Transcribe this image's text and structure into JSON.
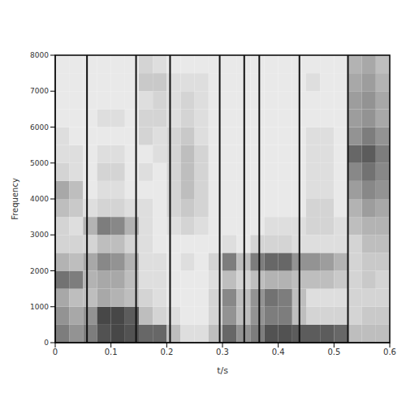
{
  "chart_data": {
    "type": "heatmap",
    "x_label": "t/s",
    "y_label": "Frequency",
    "xlim": [
      0,
      0.6
    ],
    "xticks": [
      0,
      0.1,
      0.2,
      0.3,
      0.4,
      0.5,
      0.6
    ],
    "ylim": [
      0,
      8000
    ],
    "yticks": [
      0,
      1000,
      2000,
      3000,
      4000,
      5000,
      6000,
      7000,
      8000
    ],
    "x": [
      0,
      0.025,
      0.05,
      0.075,
      0.1,
      0.125,
      0.15,
      0.175,
      0.2,
      0.225,
      0.25,
      0.275,
      0.3,
      0.325,
      0.35,
      0.375,
      0.4,
      0.425,
      0.45,
      0.475,
      0.5,
      0.525,
      0.55,
      0.575
    ],
    "y": [
      0,
      500,
      1000,
      1500,
      2000,
      2500,
      3000,
      3500,
      4000,
      4500,
      5000,
      5500,
      6000,
      6500,
      7000,
      7500
    ],
    "cells": [
      [
        0.6,
        0.5,
        0.6,
        0.8,
        0.85,
        0.8,
        0.7,
        0.7,
        0.3,
        0.15,
        0.15,
        0.3,
        0.7,
        0.5,
        0.6,
        0.8,
        0.8,
        0.75,
        0.75,
        0.75,
        0.7,
        0.3,
        0.3,
        0.3
      ],
      [
        0.5,
        0.4,
        0.5,
        0.85,
        0.85,
        0.75,
        0.3,
        0.2,
        0.15,
        0.1,
        0.1,
        0.2,
        0.5,
        0.3,
        0.5,
        0.6,
        0.6,
        0.3,
        0.2,
        0.2,
        0.2,
        0.2,
        0.25,
        0.25
      ],
      [
        0.4,
        0.3,
        0.3,
        0.4,
        0.35,
        0.3,
        0.2,
        0.15,
        0.1,
        0.1,
        0.1,
        0.2,
        0.55,
        0.3,
        0.5,
        0.65,
        0.6,
        0.3,
        0.15,
        0.15,
        0.15,
        0.2,
        0.2,
        0.2
      ],
      [
        0.65,
        0.6,
        0.35,
        0.4,
        0.4,
        0.3,
        0.15,
        0.15,
        0.1,
        0.1,
        0.1,
        0.15,
        0.3,
        0.2,
        0.3,
        0.35,
        0.35,
        0.3,
        0.3,
        0.3,
        0.25,
        0.2,
        0.25,
        0.2
      ],
      [
        0.35,
        0.3,
        0.4,
        0.55,
        0.5,
        0.35,
        0.15,
        0.15,
        0.1,
        0.15,
        0.1,
        0.2,
        0.6,
        0.3,
        0.6,
        0.7,
        0.7,
        0.5,
        0.5,
        0.45,
        0.35,
        0.2,
        0.25,
        0.25
      ],
      [
        0.2,
        0.2,
        0.2,
        0.3,
        0.3,
        0.2,
        0.15,
        0.1,
        0.1,
        0.1,
        0.1,
        0.1,
        0.15,
        0.1,
        0.2,
        0.2,
        0.2,
        0.15,
        0.15,
        0.15,
        0.15,
        0.2,
        0.3,
        0.3
      ],
      [
        0.2,
        0.15,
        0.35,
        0.6,
        0.55,
        0.35,
        0.15,
        0.1,
        0.15,
        0.2,
        0.15,
        0.1,
        0.1,
        0.1,
        0.1,
        0.15,
        0.15,
        0.15,
        0.2,
        0.2,
        0.15,
        0.3,
        0.35,
        0.35
      ],
      [
        0.3,
        0.25,
        0.15,
        0.2,
        0.2,
        0.15,
        0.15,
        0.1,
        0.2,
        0.25,
        0.2,
        0.1,
        0.1,
        0.1,
        0.1,
        0.1,
        0.1,
        0.1,
        0.2,
        0.2,
        0.1,
        0.35,
        0.45,
        0.4
      ],
      [
        0.4,
        0.3,
        0.1,
        0.15,
        0.15,
        0.1,
        0.1,
        0.1,
        0.2,
        0.3,
        0.2,
        0.1,
        0.1,
        0.1,
        0.1,
        0.1,
        0.1,
        0.1,
        0.15,
        0.15,
        0.1,
        0.45,
        0.55,
        0.5
      ],
      [
        0.2,
        0.15,
        0.1,
        0.2,
        0.2,
        0.1,
        0.15,
        0.1,
        0.2,
        0.3,
        0.2,
        0.1,
        0.1,
        0.1,
        0.1,
        0.1,
        0.1,
        0.1,
        0.15,
        0.15,
        0.1,
        0.55,
        0.65,
        0.55
      ],
      [
        0.15,
        0.15,
        0.1,
        0.15,
        0.15,
        0.1,
        0.1,
        0.15,
        0.2,
        0.3,
        0.2,
        0.1,
        0.1,
        0.1,
        0.1,
        0.1,
        0.1,
        0.1,
        0.15,
        0.15,
        0.1,
        0.7,
        0.75,
        0.6
      ],
      [
        0.15,
        0.1,
        0.1,
        0.1,
        0.1,
        0.1,
        0.2,
        0.15,
        0.2,
        0.25,
        0.15,
        0.1,
        0.1,
        0.1,
        0.1,
        0.1,
        0.1,
        0.1,
        0.15,
        0.15,
        0.1,
        0.5,
        0.6,
        0.5
      ],
      [
        0.1,
        0.1,
        0.1,
        0.15,
        0.15,
        0.1,
        0.2,
        0.2,
        0.15,
        0.2,
        0.15,
        0.1,
        0.1,
        0.1,
        0.1,
        0.1,
        0.1,
        0.1,
        0.1,
        0.1,
        0.1,
        0.45,
        0.5,
        0.4
      ],
      [
        0.1,
        0.1,
        0.1,
        0.1,
        0.1,
        0.1,
        0.15,
        0.2,
        0.15,
        0.2,
        0.15,
        0.1,
        0.1,
        0.1,
        0.1,
        0.1,
        0.1,
        0.1,
        0.1,
        0.1,
        0.1,
        0.45,
        0.5,
        0.4
      ],
      [
        0.1,
        0.1,
        0.1,
        0.1,
        0.1,
        0.1,
        0.25,
        0.25,
        0.15,
        0.15,
        0.15,
        0.1,
        0.1,
        0.1,
        0.1,
        0.1,
        0.1,
        0.1,
        0.15,
        0.1,
        0.1,
        0.4,
        0.45,
        0.35
      ],
      [
        0.1,
        0.1,
        0.1,
        0.1,
        0.1,
        0.1,
        0.2,
        0.15,
        0.1,
        0.1,
        0.1,
        0.1,
        0.1,
        0.1,
        0.1,
        0.1,
        0.1,
        0.1,
        0.1,
        0.1,
        0.1,
        0.35,
        0.4,
        0.3
      ]
    ],
    "boundaries": [
      0.057,
      0.145,
      0.206,
      0.295,
      0.339,
      0.366,
      0.438,
      0.525
    ]
  }
}
